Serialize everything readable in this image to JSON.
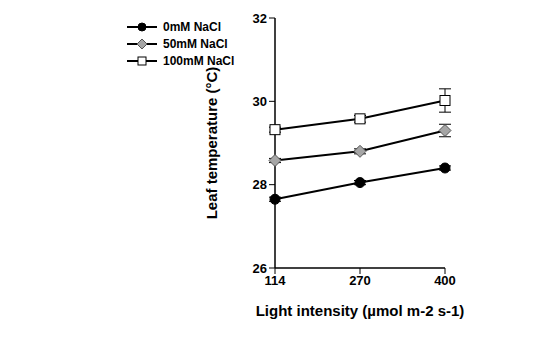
{
  "chart_data": {
    "type": "line",
    "x_label": "Light intensity (µmol m-2 s-1)",
    "y_label": "Leaf temperature (°C)",
    "categories": [
      "114",
      "270",
      "400"
    ],
    "series": [
      {
        "name": "0mM NaCl",
        "color": "#000000",
        "marker": "circle",
        "values": [
          27.65,
          28.05,
          28.4
        ],
        "errors": [
          0.05,
          0.05,
          0.05
        ]
      },
      {
        "name": "50mM NaCl",
        "color": "#a6a6a6",
        "marker": "diamond",
        "values": [
          28.58,
          28.8,
          29.3
        ],
        "errors": [
          0.05,
          0.06,
          0.15
        ]
      },
      {
        "name": "100mM NaCl",
        "color": "#ffffff",
        "marker": "square",
        "values": [
          29.32,
          29.58,
          30.02
        ],
        "errors": [
          0.06,
          0.08,
          0.28
        ]
      }
    ],
    "ylim": [
      26,
      32
    ],
    "yticks": [
      26,
      28,
      30,
      32
    ],
    "grid": false,
    "legend": "upper left"
  }
}
